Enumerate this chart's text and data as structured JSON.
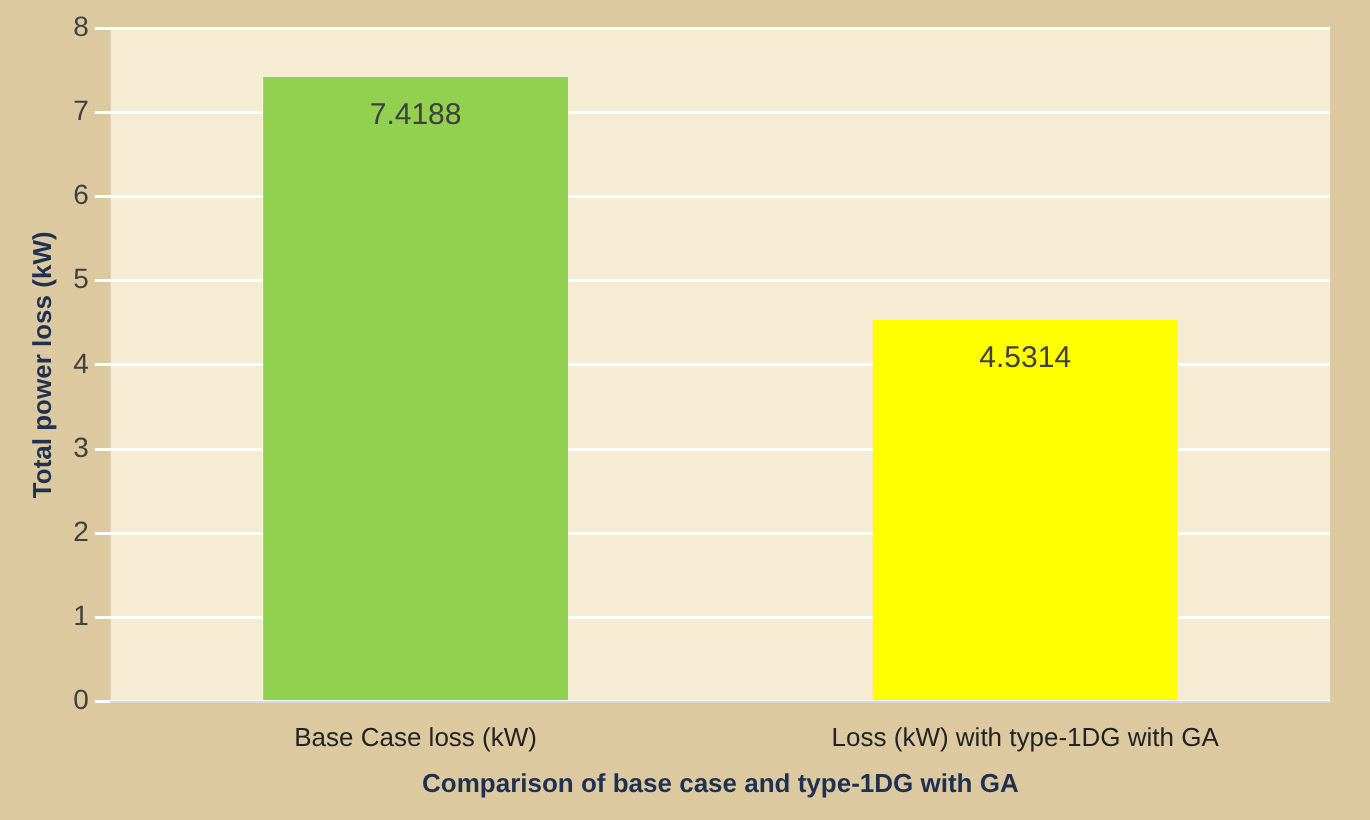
{
  "chart_data": {
    "type": "bar",
    "xlabel": "Comparison of base case and type-1DG with GA",
    "ylabel": "Total power loss (kW)",
    "categories": [
      "Base Case loss (kW)",
      "Loss (kW) with type-1DG with GA"
    ],
    "values": [
      7.4188,
      4.5314
    ],
    "colors": [
      "#92d050",
      "#ffff00"
    ],
    "ylim": [
      0,
      8
    ],
    "yticks": [
      0,
      1,
      2,
      3,
      4,
      5,
      6,
      7,
      8
    ],
    "grid": "y",
    "data_labels": true
  }
}
